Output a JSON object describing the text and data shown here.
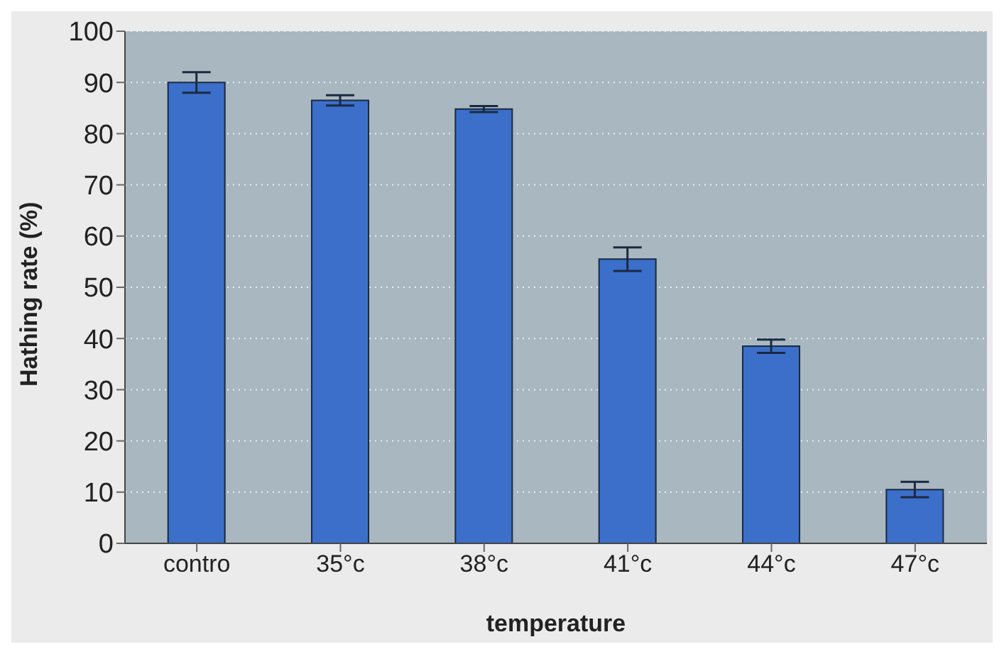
{
  "chart_data": {
    "type": "bar",
    "xlabel": "temperature",
    "ylabel": "Hathing rate (%)",
    "categories": [
      "contro",
      "35°c",
      "38°c",
      "41°c",
      "44°c",
      "47°c"
    ],
    "values": [
      90,
      86.5,
      84.8,
      55.5,
      38.5,
      10.5
    ],
    "errors": [
      2,
      1,
      0.6,
      2.3,
      1.3,
      1.5
    ],
    "color": "#3b6fca",
    "ylim": [
      0,
      100
    ],
    "yticks": [
      0,
      10,
      20,
      30,
      40,
      50,
      60,
      70,
      80,
      90,
      100
    ],
    "grid": "y",
    "legend": false
  }
}
